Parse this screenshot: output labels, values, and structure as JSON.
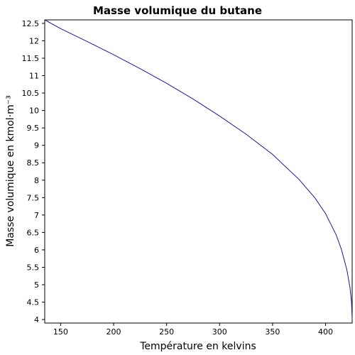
{
  "chart_data": {
    "type": "line",
    "title": "Masse volumique du butane",
    "xlabel": "Température en kelvins",
    "ylabel": "Masse volumique en kmol·m⁻³",
    "xlim": [
      135,
      425.1
    ],
    "ylim": [
      3.9,
      12.6
    ],
    "xticks": [
      150,
      200,
      250,
      300,
      350,
      400
    ],
    "yticks": [
      4,
      4.5,
      5,
      5.5,
      6,
      6.5,
      7,
      7.5,
      8,
      8.5,
      9,
      9.5,
      10,
      10.5,
      11,
      11.5,
      12,
      12.5
    ],
    "ytick_labels": [
      "4",
      "4.5",
      "5",
      "5.5",
      "6",
      "6.5",
      "7",
      "7.5",
      "8",
      "8.5",
      "9",
      "9.5",
      "10",
      "10.5",
      "11",
      "11.5",
      "12",
      "12.5"
    ],
    "grid": false,
    "line_color": "#1a1a8c",
    "series": [
      {
        "x": [
          135,
          150,
          175,
          200,
          225,
          250,
          275,
          300,
          325,
          350,
          375,
          390,
          400,
          410,
          415,
          420,
          423,
          424.5,
          425.1
        ],
        "values": [
          12.6,
          12.35,
          11.98,
          11.6,
          11.2,
          10.78,
          10.33,
          9.84,
          9.32,
          8.74,
          8.02,
          7.49,
          7.04,
          6.43,
          6.01,
          5.44,
          4.93,
          4.5,
          4.0
        ]
      }
    ]
  }
}
